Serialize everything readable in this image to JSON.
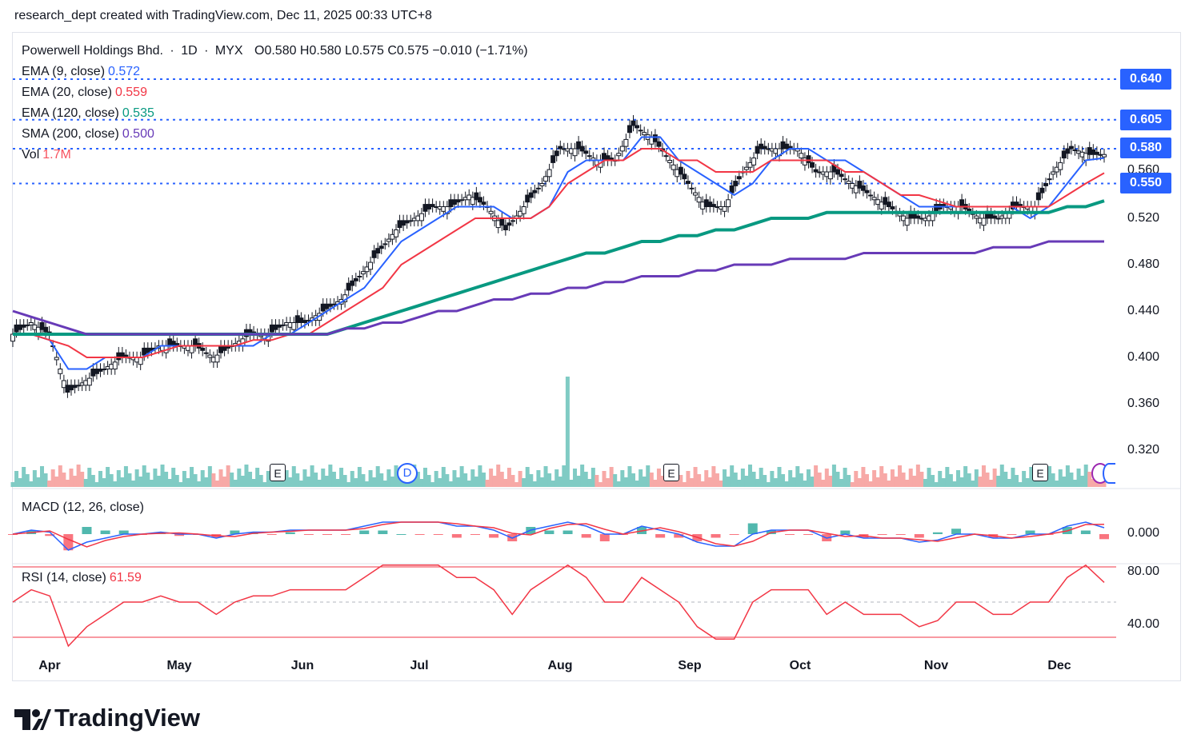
{
  "header": {
    "attribution": "research_dept created with TradingView.com, Dec 11, 2025 00:33 UTC+8"
  },
  "legend": {
    "symbol": "Powerwell Holdings Bhd.",
    "interval": "1D",
    "exchange": "MYX",
    "ohlc": "O0.580  H0.580  L0.575  C0.575  −0.010 (−1.71%)",
    "ema9_label": "EMA (9, close)",
    "ema9_value": "0.572",
    "ema20_label": "EMA (20, close)",
    "ema20_value": "0.559",
    "ema120_label": "EMA (120, close)",
    "ema120_value": "0.535",
    "sma200_label": "SMA (200, close)",
    "sma200_value": "0.500",
    "vol_label": "Vol",
    "vol_value": "1.7M",
    "macd_label": "MACD (12, 26, close)",
    "rsi_label": "RSI (14, close)",
    "rsi_value": "61.59"
  },
  "price_tags": [
    {
      "value": "0.640",
      "color": "#2962ff"
    },
    {
      "value": "0.605",
      "color": "#2962ff"
    },
    {
      "value": "0.580",
      "color": "#2962ff"
    },
    {
      "value": "0.550",
      "color": "#2962ff"
    }
  ],
  "partial_tag": "0.560",
  "price_axis": [
    "0.520",
    "0.480",
    "0.440",
    "0.400",
    "0.360",
    "0.320"
  ],
  "macd_axis": [
    "0.000"
  ],
  "rsi_axis": [
    "80.00",
    "40.00"
  ],
  "time_axis": [
    "Apr",
    "May",
    "Jun",
    "Jul",
    "Aug",
    "Sep",
    "Oct",
    "Nov",
    "Dec"
  ],
  "events": [
    {
      "type": "E"
    },
    {
      "type": "D"
    },
    {
      "type": "E"
    },
    {
      "type": "E"
    }
  ],
  "colors": {
    "up": "#089981",
    "down": "#f23645",
    "ema9": "#2962ff",
    "ema20": "#f23645",
    "ema120": "#089981",
    "sma200": "#673ab7",
    "level": "#2962ff",
    "macd": "#2962ff",
    "signal": "#f23645",
    "rsi": "#f23645"
  },
  "brand": "TradingView",
  "chart_data": {
    "type": "candlestick",
    "title": "Powerwell Holdings Bhd. · 1D · MYX",
    "ylim": [
      0.29,
      0.655
    ],
    "horizontal_levels": [
      0.64,
      0.605,
      0.58,
      0.55
    ],
    "series": [
      {
        "name": "EMA (9, close)",
        "values": [
          0.42,
          0.42,
          0.415,
          0.39,
          0.39,
          0.4,
          0.4,
          0.4,
          0.41,
          0.41,
          0.41,
          0.41,
          0.41,
          0.41,
          0.42,
          0.42,
          0.43,
          0.44,
          0.45,
          0.46,
          0.48,
          0.5,
          0.51,
          0.52,
          0.53,
          0.53,
          0.53,
          0.52,
          0.52,
          0.53,
          0.56,
          0.57,
          0.57,
          0.57,
          0.59,
          0.59,
          0.57,
          0.56,
          0.55,
          0.54,
          0.55,
          0.57,
          0.58,
          0.58,
          0.57,
          0.57,
          0.56,
          0.55,
          0.54,
          0.53,
          0.53,
          0.53,
          0.53,
          0.53,
          0.53,
          0.52,
          0.53,
          0.55,
          0.57,
          0.572
        ]
      },
      {
        "name": "EMA (20, close)",
        "values": [
          0.42,
          0.42,
          0.415,
          0.41,
          0.4,
          0.4,
          0.4,
          0.4,
          0.405,
          0.41,
          0.41,
          0.41,
          0.41,
          0.415,
          0.415,
          0.42,
          0.42,
          0.43,
          0.44,
          0.45,
          0.46,
          0.48,
          0.49,
          0.5,
          0.51,
          0.52,
          0.52,
          0.52,
          0.52,
          0.53,
          0.55,
          0.56,
          0.57,
          0.57,
          0.58,
          0.58,
          0.57,
          0.57,
          0.56,
          0.56,
          0.56,
          0.57,
          0.57,
          0.57,
          0.57,
          0.56,
          0.56,
          0.55,
          0.54,
          0.54,
          0.535,
          0.53,
          0.53,
          0.53,
          0.53,
          0.53,
          0.53,
          0.54,
          0.55,
          0.559
        ]
      },
      {
        "name": "EMA (120, close)",
        "values": [
          0.42,
          0.42,
          0.42,
          0.42,
          0.42,
          0.42,
          0.42,
          0.42,
          0.42,
          0.42,
          0.42,
          0.42,
          0.42,
          0.42,
          0.42,
          0.42,
          0.42,
          0.42,
          0.425,
          0.43,
          0.435,
          0.44,
          0.445,
          0.45,
          0.455,
          0.46,
          0.465,
          0.47,
          0.475,
          0.48,
          0.485,
          0.49,
          0.49,
          0.495,
          0.5,
          0.5,
          0.505,
          0.505,
          0.51,
          0.51,
          0.515,
          0.52,
          0.52,
          0.52,
          0.525,
          0.525,
          0.525,
          0.525,
          0.525,
          0.525,
          0.525,
          0.525,
          0.525,
          0.525,
          0.525,
          0.525,
          0.525,
          0.53,
          0.53,
          0.535
        ]
      },
      {
        "name": "SMA (200, close)",
        "values": [
          0.44,
          0.435,
          0.43,
          0.425,
          0.42,
          0.42,
          0.42,
          0.42,
          0.42,
          0.42,
          0.42,
          0.42,
          0.42,
          0.42,
          0.42,
          0.42,
          0.42,
          0.42,
          0.425,
          0.425,
          0.43,
          0.43,
          0.435,
          0.44,
          0.44,
          0.445,
          0.45,
          0.45,
          0.455,
          0.455,
          0.46,
          0.46,
          0.465,
          0.465,
          0.47,
          0.47,
          0.47,
          0.475,
          0.475,
          0.48,
          0.48,
          0.48,
          0.485,
          0.485,
          0.485,
          0.485,
          0.49,
          0.49,
          0.49,
          0.49,
          0.49,
          0.49,
          0.49,
          0.495,
          0.495,
          0.495,
          0.5,
          0.5,
          0.5,
          0.5
        ]
      }
    ],
    "close": [
      0.42,
      0.43,
      0.42,
      0.37,
      0.38,
      0.39,
      0.4,
      0.4,
      0.41,
      0.41,
      0.41,
      0.4,
      0.41,
      0.42,
      0.42,
      0.43,
      0.43,
      0.44,
      0.45,
      0.47,
      0.49,
      0.51,
      0.52,
      0.53,
      0.53,
      0.54,
      0.53,
      0.51,
      0.53,
      0.55,
      0.58,
      0.58,
      0.57,
      0.57,
      0.6,
      0.59,
      0.57,
      0.55,
      0.53,
      0.53,
      0.56,
      0.58,
      0.58,
      0.58,
      0.56,
      0.56,
      0.55,
      0.54,
      0.53,
      0.52,
      0.52,
      0.53,
      0.53,
      0.52,
      0.52,
      0.53,
      0.53,
      0.56,
      0.58,
      0.575
    ],
    "xlabel": "",
    "ylabel": "",
    "time_labels": [
      "Apr",
      "May",
      "Jun",
      "Jul",
      "Aug",
      "Sep",
      "Oct",
      "Nov",
      "Dec"
    ]
  }
}
